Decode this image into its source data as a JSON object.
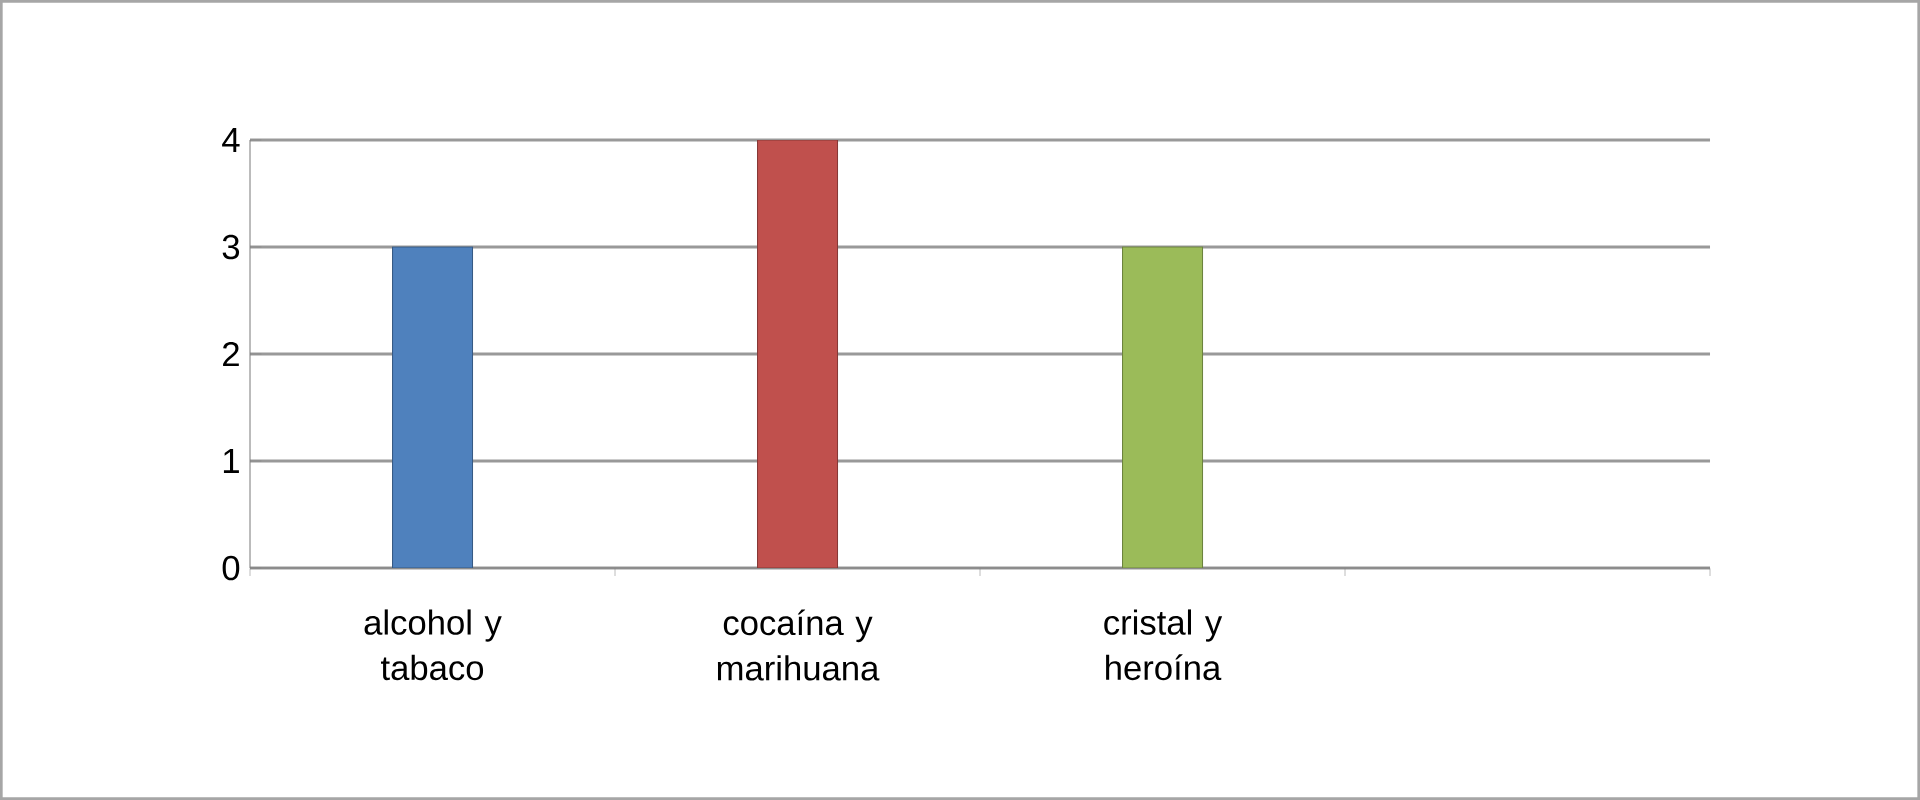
{
  "chart_data": {
    "type": "bar",
    "categories": [
      "alcohol y tabaco",
      "cocaína y marihuana",
      "cristal y heroína",
      null
    ],
    "values": [
      3,
      4,
      3,
      null
    ],
    "colors": [
      "#4f81bd",
      "#c0504d",
      "#9bbb59",
      null
    ],
    "ylim": [
      0,
      4
    ],
    "yticks": [
      0,
      1,
      2,
      3,
      4
    ],
    "grid": "y"
  }
}
